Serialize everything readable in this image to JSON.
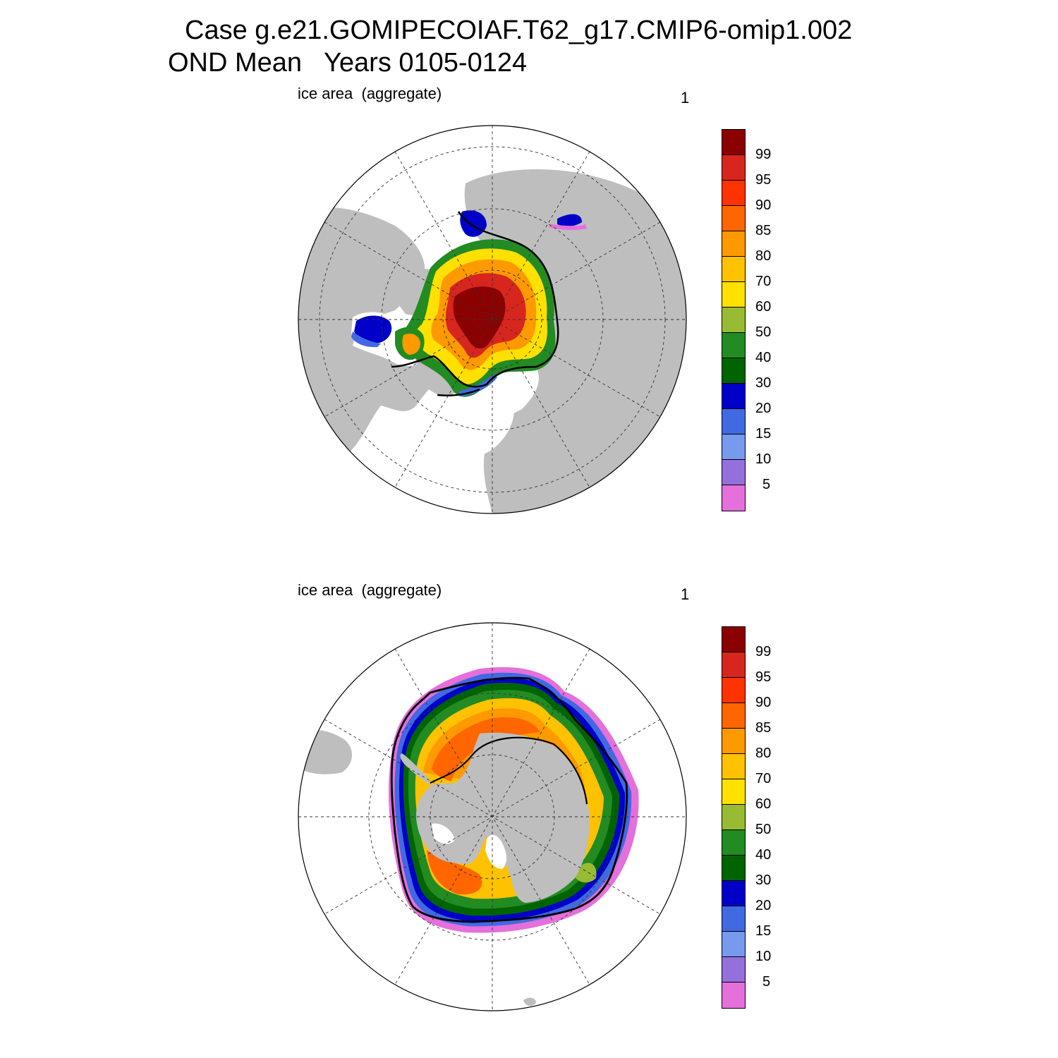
{
  "title": {
    "line1": "Case g.e21.GOMIPECOIAF.T62_g17.CMIP6-omip1.002",
    "line2": "OND Mean   Years 0105-0124"
  },
  "panels": [
    {
      "id": "north",
      "label": "ice area  (aggregate)",
      "units": "1",
      "hemisphere": "Northern Hemisphere"
    },
    {
      "id": "south",
      "label": "ice area  (aggregate)",
      "units": "1",
      "hemisphere": "Southern Hemisphere"
    }
  ],
  "colorbar": {
    "colors": [
      "#8b0000",
      "#d7261e",
      "#ff3300",
      "#ff6600",
      "#ff9900",
      "#ffc200",
      "#ffe000",
      "#99bb33",
      "#228b22",
      "#006400",
      "#0000c8",
      "#4169e1",
      "#7799ee",
      "#9370db",
      "#e56fdb"
    ],
    "tick_labels": [
      "99",
      "95",
      "90",
      "85",
      "80",
      "70",
      "60",
      "50",
      "40",
      "30",
      "20",
      "15",
      "10",
      "5"
    ]
  },
  "chart_data": {
    "type": "polar-stereographic filled contour",
    "variable": "ice area (aggregate)",
    "units": "1",
    "levels": [
      5,
      10,
      15,
      20,
      30,
      40,
      50,
      60,
      70,
      80,
      85,
      90,
      95,
      99
    ],
    "land_color": "#bebebe",
    "ocean_color": "#ffffff",
    "contour_line_color": "#000000"
  }
}
